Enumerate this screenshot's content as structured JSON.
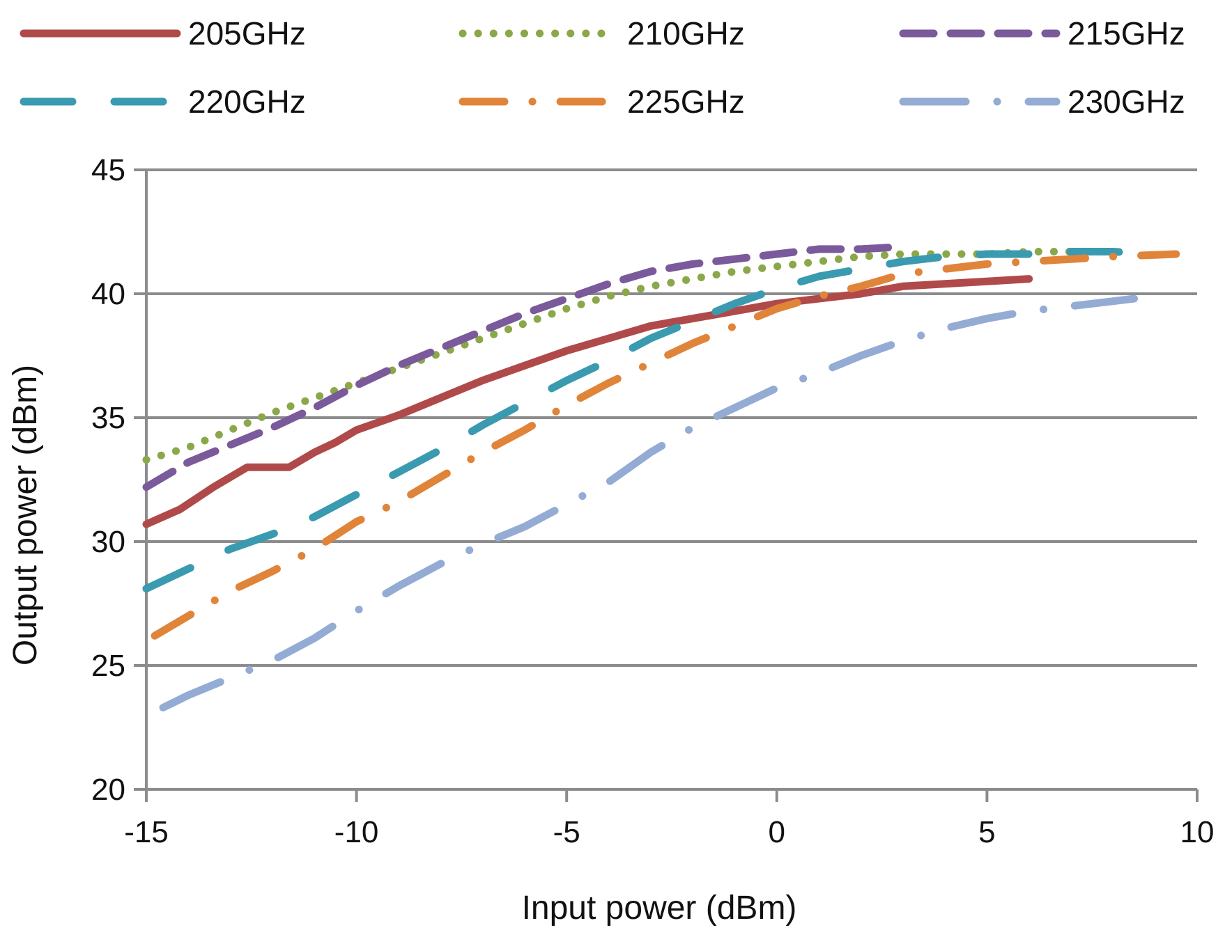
{
  "chart_data": {
    "type": "line",
    "title": "",
    "xlabel": "Input power  (dBm)",
    "ylabel": "Output power  (dBm)",
    "xlim": [
      -15,
      10
    ],
    "ylim": [
      20,
      45
    ],
    "xticks": [
      -15,
      -10,
      -5,
      0,
      5,
      10
    ],
    "yticks": [
      20,
      25,
      30,
      35,
      40,
      45
    ],
    "xtick_labels": [
      "-15",
      "-10",
      "-5",
      "0",
      "5",
      "10"
    ],
    "ytick_labels": [
      "20",
      "25",
      "30",
      "35",
      "40",
      "45"
    ],
    "grid": true,
    "legend_position": "top",
    "series": [
      {
        "name": "205GHz",
        "color": "#b04a4a",
        "dash": "solid",
        "x": [
          -15,
          -14.2,
          -13.4,
          -12.6,
          -12.1,
          -11.6,
          -11,
          -10.5,
          -10,
          -9,
          -8,
          -7,
          -6,
          -5,
          -4,
          -3,
          -2,
          -1,
          0,
          1,
          2,
          3,
          4,
          5,
          6
        ],
        "y": [
          30.7,
          31.3,
          32.2,
          33.0,
          33.0,
          33.0,
          33.6,
          34.0,
          34.5,
          35.1,
          35.8,
          36.5,
          37.1,
          37.7,
          38.2,
          38.7,
          39.0,
          39.3,
          39.6,
          39.8,
          40.0,
          40.3,
          40.4,
          40.5,
          40.6
        ]
      },
      {
        "name": "210GHz",
        "color": "#8aa84a",
        "dash": "dotted",
        "x": [
          -15,
          -14,
          -13,
          -12,
          -11,
          -10,
          -9,
          -8,
          -7,
          -6,
          -5,
          -4,
          -3,
          -2,
          -1,
          0,
          1,
          2,
          3,
          4,
          5,
          6,
          7,
          8
        ],
        "y": [
          33.3,
          33.8,
          34.5,
          35.2,
          35.8,
          36.4,
          37.0,
          37.6,
          38.2,
          38.8,
          39.4,
          39.9,
          40.3,
          40.6,
          40.9,
          41.1,
          41.3,
          41.5,
          41.6,
          41.6,
          41.6,
          41.7,
          41.7,
          41.7
        ]
      },
      {
        "name": "215GHz",
        "color": "#7a5a9a",
        "dash": "dash",
        "x": [
          -15,
          -14,
          -13,
          -12,
          -11,
          -10,
          -9,
          -8,
          -7,
          -6,
          -5,
          -4,
          -3,
          -2,
          -1,
          0,
          1,
          2,
          3
        ],
        "y": [
          32.2,
          33.2,
          33.9,
          34.6,
          35.4,
          36.3,
          37.1,
          37.8,
          38.5,
          39.2,
          39.8,
          40.4,
          40.9,
          41.2,
          41.4,
          41.6,
          41.8,
          41.8,
          41.9
        ]
      },
      {
        "name": "220GHz",
        "color": "#3a9ab0",
        "dash": "long-dash",
        "x": [
          -15,
          -14,
          -13,
          -12,
          -11,
          -10,
          -9,
          -8,
          -7,
          -6,
          -5,
          -4,
          -3,
          -2,
          -1,
          0,
          1,
          2,
          3,
          4,
          5,
          6,
          7,
          8,
          9
        ],
        "y": [
          28.1,
          28.9,
          29.7,
          30.3,
          31.0,
          31.9,
          32.8,
          33.7,
          34.7,
          35.6,
          36.5,
          37.3,
          38.2,
          38.9,
          39.6,
          40.2,
          40.7,
          41.0,
          41.3,
          41.5,
          41.6,
          41.6,
          41.7,
          41.7,
          41.6
        ]
      },
      {
        "name": "225GHz",
        "color": "#e0843a",
        "dash": "dash-dot",
        "x": [
          -14.8,
          -14,
          -13,
          -12,
          -11,
          -10,
          -9,
          -8,
          -7,
          -6,
          -5,
          -4,
          -3,
          -2,
          -1,
          0,
          1,
          2,
          3,
          4,
          5,
          6,
          7,
          8,
          9.5
        ],
        "y": [
          26.2,
          27.0,
          28.0,
          28.8,
          29.7,
          30.8,
          31.6,
          32.6,
          33.6,
          34.5,
          35.5,
          36.4,
          37.2,
          38.0,
          38.7,
          39.4,
          39.9,
          40.3,
          40.8,
          41.0,
          41.2,
          41.3,
          41.4,
          41.5,
          41.6
        ]
      },
      {
        "name": "230GHz",
        "color": "#94abd4",
        "dash": "long-dash-dot",
        "x": [
          -14.6,
          -14,
          -13,
          -12,
          -11,
          -10,
          -9,
          -8,
          -7,
          -6,
          -5,
          -4,
          -3,
          -2,
          -1,
          0,
          1,
          2,
          3,
          4,
          5,
          6,
          7,
          8,
          8.5
        ],
        "y": [
          23.3,
          23.8,
          24.5,
          25.2,
          26.1,
          27.2,
          28.2,
          29.1,
          29.9,
          30.6,
          31.5,
          32.4,
          33.6,
          34.6,
          35.4,
          36.2,
          36.8,
          37.5,
          38.1,
          38.6,
          39.0,
          39.3,
          39.5,
          39.7,
          39.8
        ]
      }
    ]
  }
}
